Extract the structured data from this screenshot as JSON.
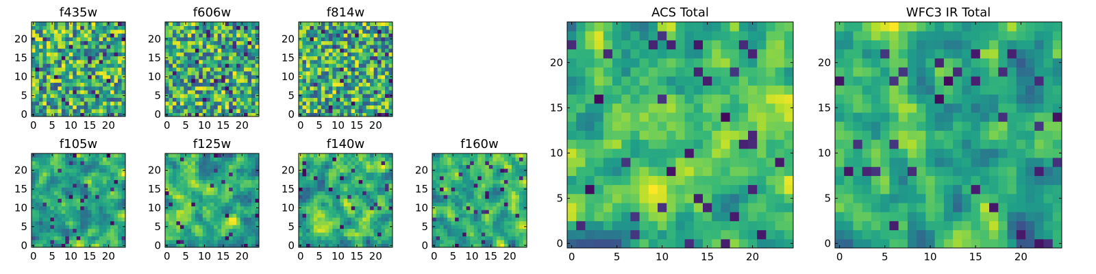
{
  "figure": {
    "description": "Image cutouts per filter, 25x25 pixel stamps",
    "colormap": "viridis"
  },
  "chart_data": [
    {
      "type": "heatmap",
      "title": "f435w",
      "grid": [
        25,
        25
      ],
      "xlim": [
        0,
        24
      ],
      "ylim": [
        0,
        24
      ],
      "xticks": [
        0,
        5,
        10,
        15,
        20
      ],
      "yticks": [
        0,
        5,
        10,
        15,
        20
      ],
      "seed": 11,
      "smooth": 0,
      "colormap": "viridis"
    },
    {
      "type": "heatmap",
      "title": "f606w",
      "grid": [
        25,
        25
      ],
      "xlim": [
        0,
        24
      ],
      "ylim": [
        0,
        24
      ],
      "xticks": [
        0,
        5,
        10,
        15,
        20
      ],
      "yticks": [
        0,
        5,
        10,
        15,
        20
      ],
      "seed": 23,
      "smooth": 0,
      "colormap": "viridis"
    },
    {
      "type": "heatmap",
      "title": "f814w",
      "grid": [
        25,
        25
      ],
      "xlim": [
        0,
        24
      ],
      "ylim": [
        0,
        24
      ],
      "xticks": [
        0,
        5,
        10,
        15,
        20
      ],
      "yticks": [
        0,
        5,
        10,
        15,
        20
      ],
      "seed": 37,
      "smooth": 0,
      "colormap": "viridis"
    },
    {
      "type": "heatmap",
      "title": "f105w",
      "grid": [
        25,
        25
      ],
      "xlim": [
        0,
        24
      ],
      "ylim": [
        0,
        24
      ],
      "xticks": [
        0,
        5,
        10,
        15,
        20
      ],
      "yticks": [
        0,
        5,
        10,
        15,
        20
      ],
      "seed": 41,
      "smooth": 1,
      "colormap": "viridis"
    },
    {
      "type": "heatmap",
      "title": "f125w",
      "grid": [
        25,
        25
      ],
      "xlim": [
        0,
        24
      ],
      "ylim": [
        0,
        24
      ],
      "xticks": [
        0,
        5,
        10,
        15,
        20
      ],
      "yticks": [
        0,
        5,
        10,
        15,
        20
      ],
      "seed": 53,
      "smooth": 1,
      "colormap": "viridis"
    },
    {
      "type": "heatmap",
      "title": "f140w",
      "grid": [
        25,
        25
      ],
      "xlim": [
        0,
        24
      ],
      "ylim": [
        0,
        24
      ],
      "xticks": [
        0,
        5,
        10,
        15,
        20
      ],
      "yticks": [
        0,
        5,
        10,
        15,
        20
      ],
      "seed": 67,
      "smooth": 1,
      "colormap": "viridis"
    },
    {
      "type": "heatmap",
      "title": "f160w",
      "grid": [
        25,
        25
      ],
      "xlim": [
        0,
        24
      ],
      "ylim": [
        0,
        24
      ],
      "xticks": [
        0,
        5,
        10,
        15,
        20
      ],
      "yticks": [
        0,
        5,
        10,
        15,
        20
      ],
      "seed": 79,
      "smooth": 1,
      "colormap": "viridis"
    },
    {
      "type": "heatmap",
      "title": "ACS Total",
      "grid": [
        25,
        25
      ],
      "xlim": [
        0,
        24
      ],
      "ylim": [
        0,
        24
      ],
      "xticks": [
        0,
        5,
        10,
        15,
        20
      ],
      "yticks": [
        0,
        5,
        10,
        15,
        20
      ],
      "seed": 97,
      "smooth": 1,
      "colormap": "viridis"
    },
    {
      "type": "heatmap",
      "title": "WFC3 IR Total",
      "grid": [
        25,
        25
      ],
      "xlim": [
        0,
        24
      ],
      "ylim": [
        0,
        24
      ],
      "xticks": [
        0,
        5,
        10,
        15,
        20
      ],
      "yticks": [
        0,
        5,
        10,
        15,
        20
      ],
      "seed": 131,
      "smooth": 1,
      "colormap": "viridis"
    }
  ]
}
